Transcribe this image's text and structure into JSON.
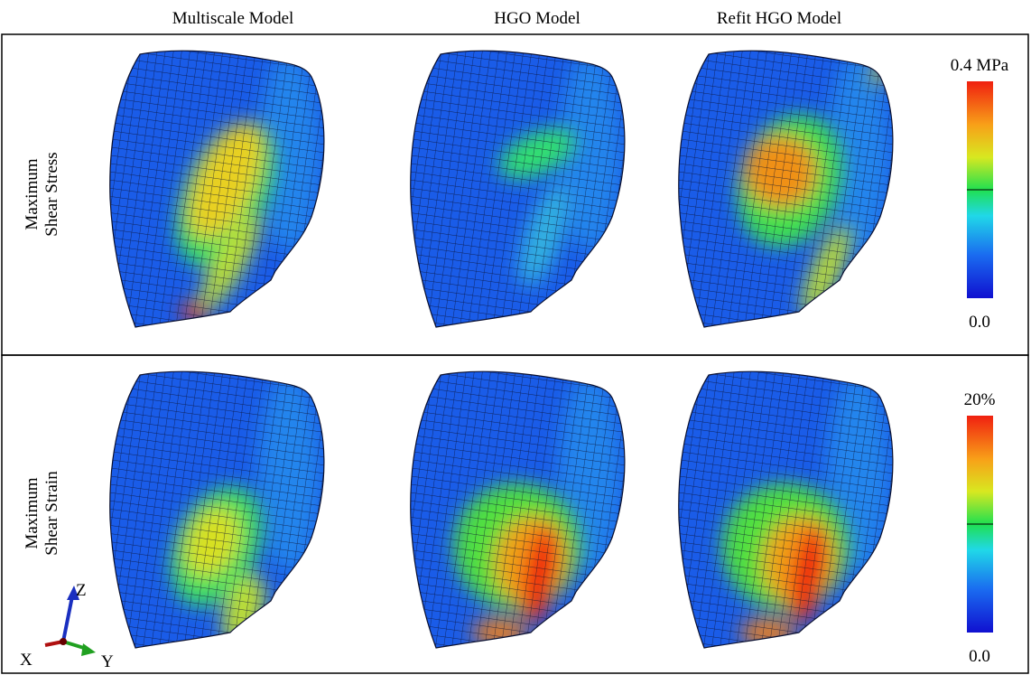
{
  "columns": [
    "Multiscale Model",
    "HGO Model",
    "Refit HGO Model"
  ],
  "rows": [
    {
      "label_lines": [
        "Maximum",
        "Shear Stress"
      ],
      "scale_max": "0.4 MPa",
      "scale_min": "0.0"
    },
    {
      "label_lines": [
        "Maximum",
        "Shear Strain"
      ],
      "scale_max": "20%",
      "scale_min": "0.0"
    }
  ],
  "axes": {
    "x": "X",
    "y": "Y",
    "z": "Z"
  }
}
